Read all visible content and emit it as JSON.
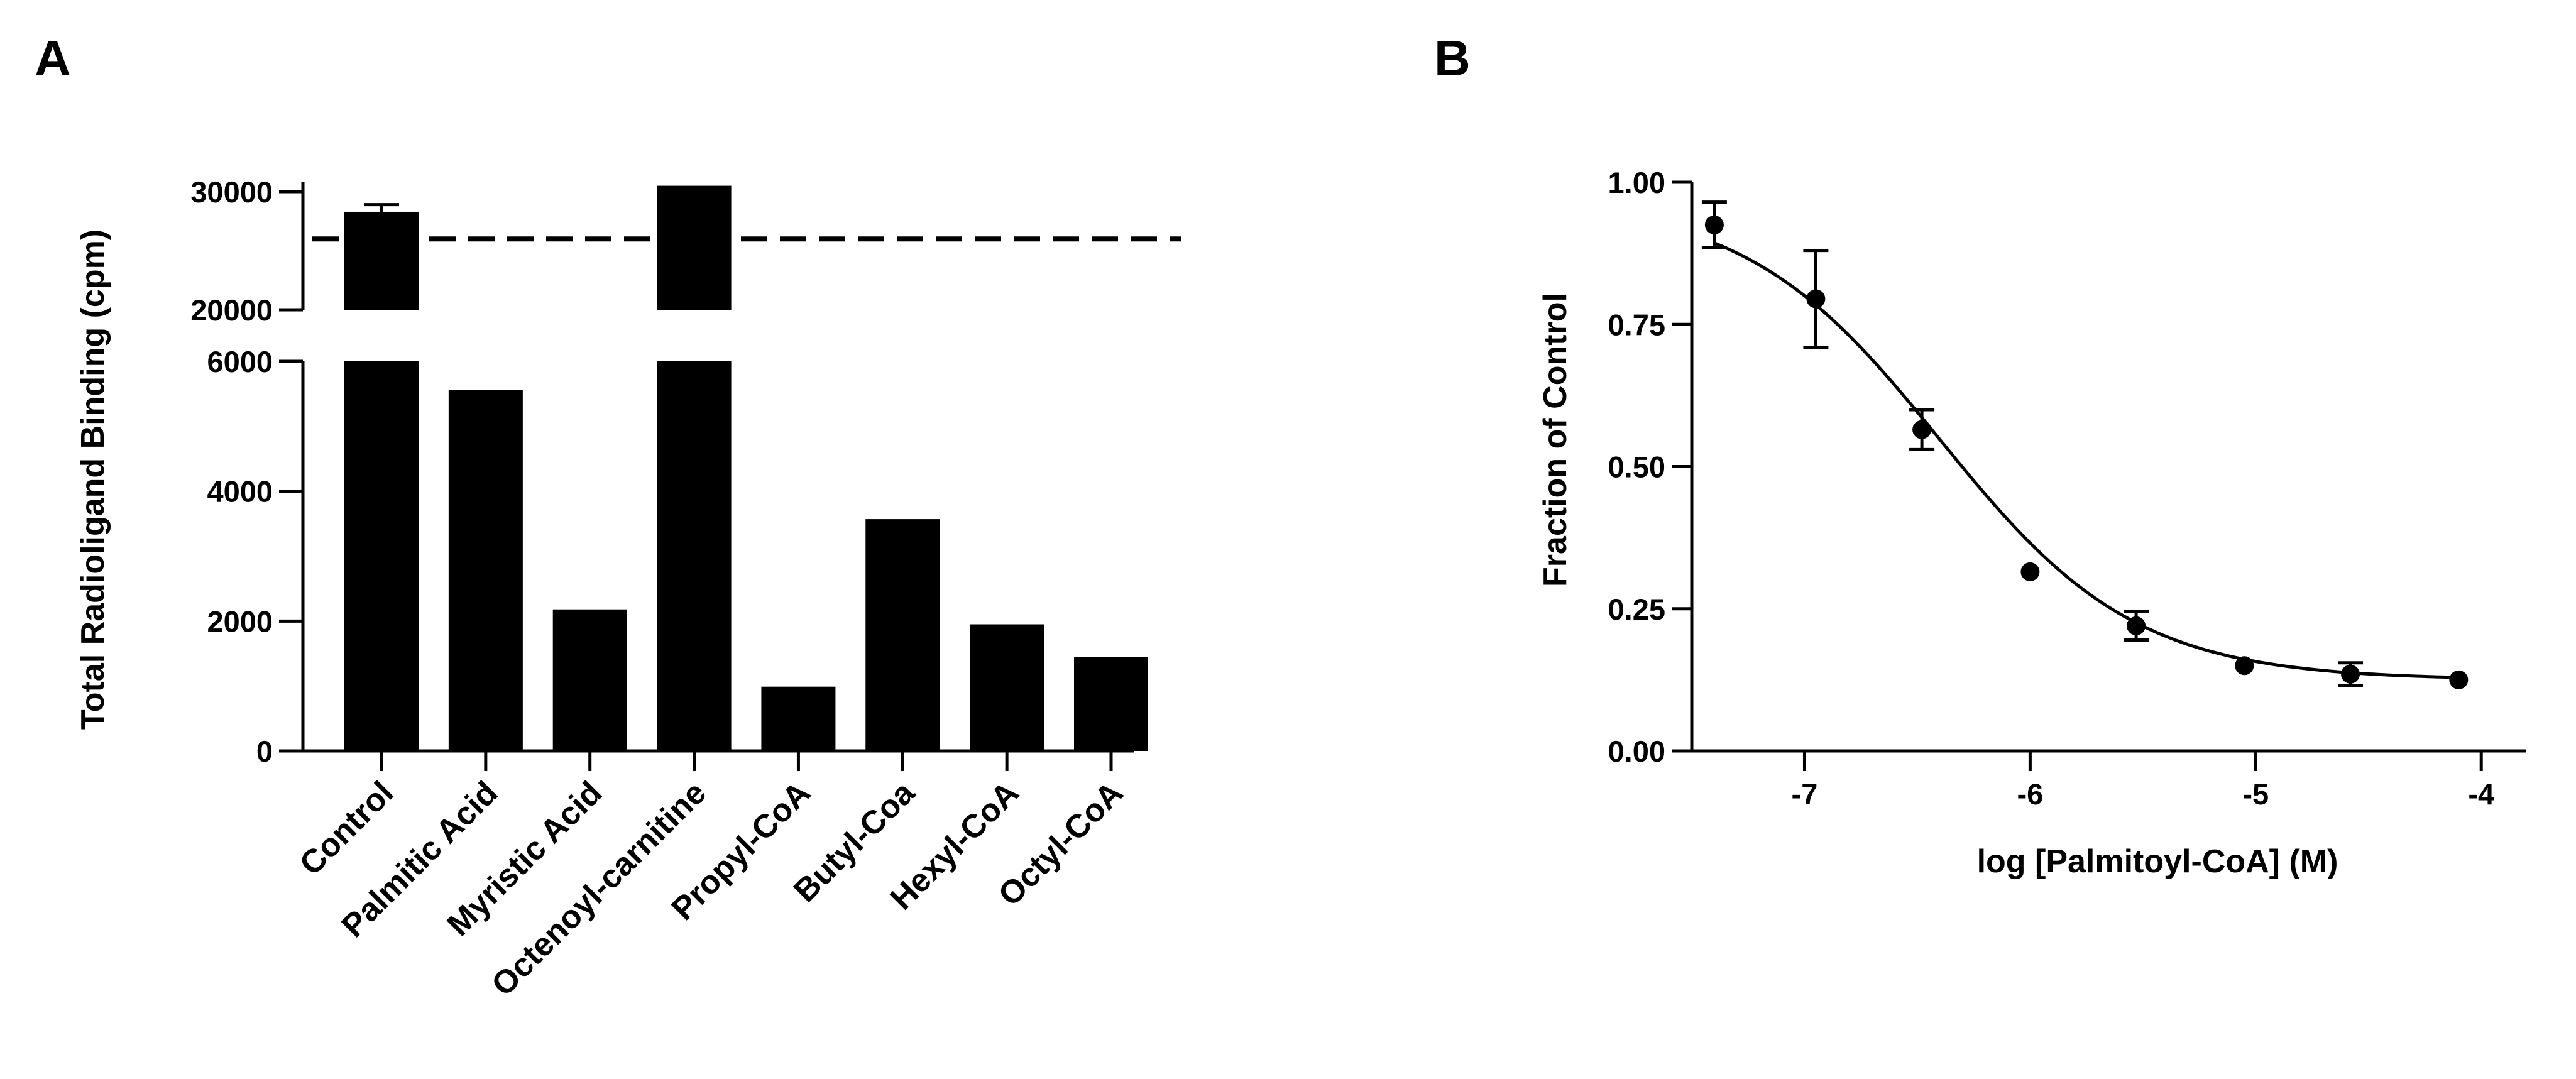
{
  "chart_data": [
    {
      "type": "bar",
      "panel_label": "A",
      "ylabel": "Total Radioligand Binding (cpm)",
      "categories": [
        "Control",
        "Palmitic Acid",
        "Myristic Acid",
        "Octenoyl-carnitine",
        "Propyl-CoA",
        "Butyl-Coa",
        "Hexyl-CoA",
        "Octyl-CoA"
      ],
      "values": [
        28300,
        5560,
        2180,
        30500,
        990,
        3570,
        1950,
        1450
      ],
      "errors": [
        600,
        0,
        0,
        0,
        0,
        0,
        0,
        0
      ],
      "reference_line": 26000,
      "y_segments": [
        {
          "range": [
            0,
            6000
          ],
          "ticks": [
            0,
            2000,
            4000,
            6000
          ],
          "tick_labels": [
            "0",
            "2000",
            "4000",
            "6000"
          ]
        },
        {
          "range": [
            20000,
            30000
          ],
          "ticks": [
            20000,
            30000
          ],
          "tick_labels": [
            "20000",
            "30000"
          ]
        }
      ]
    },
    {
      "type": "scatter",
      "panel_label": "B",
      "xlabel": "log [Palmitoyl-CoA] (M)",
      "ylabel": "Fraction of Control",
      "xlim": [
        -7.5,
        -3.8
      ],
      "ylim": [
        0,
        1.0
      ],
      "xticks": [
        -7,
        -6,
        -5,
        -4
      ],
      "xtick_labels": [
        "-7",
        "-6",
        "-5",
        "-4"
      ],
      "yticks": [
        0,
        0.25,
        0.5,
        0.75,
        1.0
      ],
      "ytick_labels": [
        "0.00",
        "0.25",
        "0.50",
        "0.75",
        "1.00"
      ],
      "x": [
        -7.4,
        -6.95,
        -6.48,
        -6.0,
        -5.53,
        -5.05,
        -4.58,
        -4.1
      ],
      "y": [
        0.925,
        0.795,
        0.565,
        0.315,
        0.22,
        0.15,
        0.135,
        0.125
      ],
      "yerr": [
        0.04,
        0.085,
        0.035,
        0.0,
        0.025,
        0.0,
        0.02,
        0.0
      ],
      "fit": {
        "model": "sigmoidal dose-response",
        "top": 0.97,
        "bottom": 0.125,
        "logIC50": -6.4,
        "hill": -1.0
      }
    }
  ]
}
